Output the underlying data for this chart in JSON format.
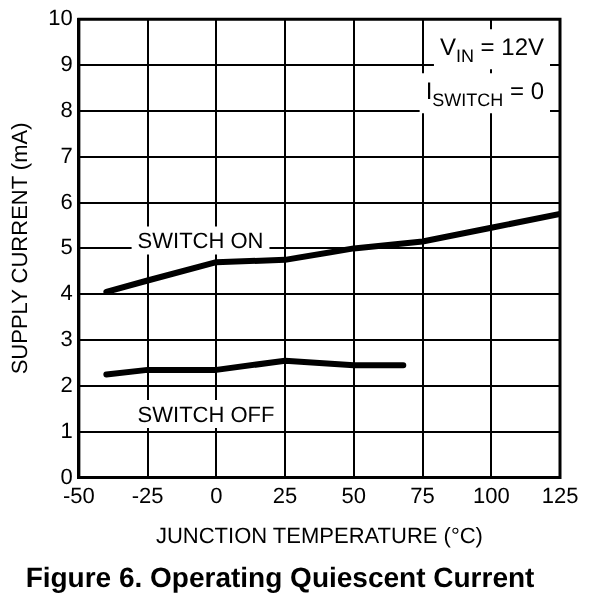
{
  "chart_data": {
    "type": "line",
    "title": "Figure 6. Operating Quiescent Current",
    "xlabel": "JUNCTION TEMPERATURE (°C)",
    "ylabel": "SUPPLY CURRENT (mA)",
    "annotations": [
      "V$_{IN}$ = 12V",
      "I$_{SWITCH}$ = 0"
    ],
    "series": [
      {
        "name": "SWITCH ON",
        "color": "#000000",
        "x": [
          -40,
          -25,
          0,
          25,
          50,
          75,
          100,
          125
        ],
        "values": [
          4.05,
          4.3,
          4.7,
          4.75,
          5.0,
          5.15,
          5.45,
          5.75
        ]
      },
      {
        "name": "SWITCH OFF",
        "color": "#000000",
        "x": [
          -40,
          -25,
          0,
          25,
          50,
          68
        ],
        "values": [
          2.25,
          2.35,
          2.35,
          2.55,
          2.45,
          2.45
        ]
      }
    ],
    "xlim": [
      -50,
      125
    ],
    "xticks": [
      -50,
      -25,
      0,
      25,
      50,
      75,
      100,
      125
    ],
    "ylim": [
      0,
      10
    ],
    "yticks": [
      0,
      1,
      2,
      3,
      4,
      5,
      6,
      7,
      8,
      9,
      10
    ],
    "grid": true,
    "legend": false,
    "marker": "none",
    "line_style": "solid"
  }
}
